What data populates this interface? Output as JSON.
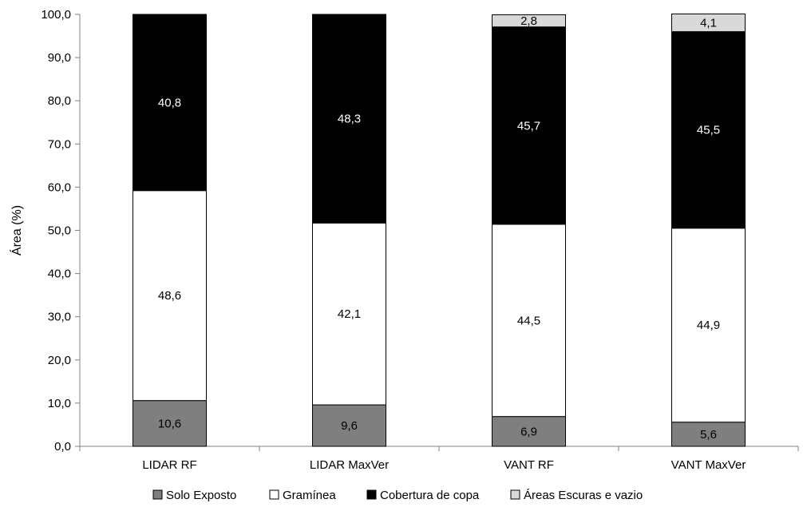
{
  "chart_data": {
    "type": "bar",
    "stacked": true,
    "title": "",
    "xlabel": "",
    "ylabel": "Área (%)",
    "ylim": [
      0,
      100
    ],
    "ytick_step": 10,
    "ytick_labels": [
      "0,0",
      "10,0",
      "20,0",
      "30,0",
      "40,0",
      "50,0",
      "60,0",
      "70,0",
      "80,0",
      "90,0",
      "100,0"
    ],
    "categories": [
      "LIDAR RF",
      "LIDAR MaxVer",
      "VANT RF",
      "VANT MaxVer"
    ],
    "series": [
      {
        "name": "Solo Exposto",
        "color": "#7f7f7f",
        "label_color": "#000000",
        "values": [
          10.6,
          9.6,
          6.9,
          5.6
        ],
        "labels": [
          "10,6",
          "9,6",
          "6,9",
          "5,6"
        ]
      },
      {
        "name": "Gramínea",
        "color": "#ffffff",
        "label_color": "#000000",
        "values": [
          48.6,
          42.1,
          44.5,
          44.9
        ],
        "labels": [
          "48,6",
          "42,1",
          "44,5",
          "44,9"
        ]
      },
      {
        "name": "Cobertura de copa",
        "color": "#000000",
        "label_color": "#ffffff",
        "values": [
          40.8,
          48.3,
          45.7,
          45.5
        ],
        "labels": [
          "40,8",
          "48,3",
          "45,7",
          "45,5"
        ]
      },
      {
        "name": "Áreas Escuras e vazio",
        "color": "#d9d9d9",
        "label_color": "#000000",
        "values": [
          0,
          0,
          2.8,
          4.1
        ],
        "labels": [
          "",
          "",
          "2,8",
          "4,1"
        ]
      }
    ],
    "grid": false,
    "legend_position": "bottom"
  }
}
